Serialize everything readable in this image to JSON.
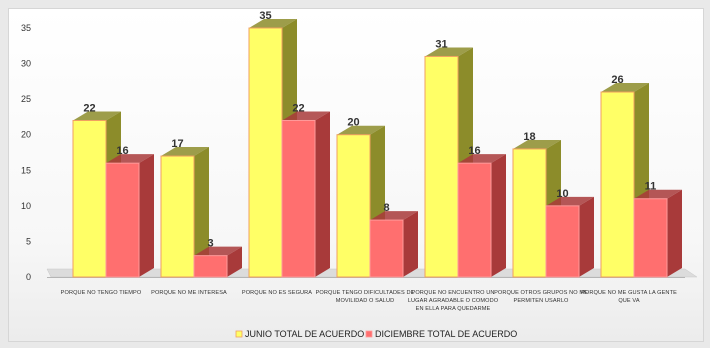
{
  "chart_data": {
    "type": "bar",
    "categories": [
      "PORQUE NO TENGO TIEMPO",
      "PORQUE NO ME INTERESA",
      "PORQUE NO ES SEGURA",
      "PORQUE TENGO DIFICULTADES DE MOVILIDAD O SALUD",
      "PORQUE NO ENCUENTRO UN LUGAR AGRADABLE O COMODO EN ELLA PARA QUEDARME",
      "PORQUE OTROS GRUPOS NO ME PERMITEN USARLO",
      "PORQUE NO ME GUSTA LA GENTE QUE VA"
    ],
    "category_lines": [
      [
        "PORQUE NO TENGO TIEMPO"
      ],
      [
        "PORQUE NO ME INTERESA"
      ],
      [
        "PORQUE NO ES SEGURA"
      ],
      [
        "PORQUE TENGO DIFICULTADES DE",
        "MOVILIDAD O SALUD"
      ],
      [
        "PORQUE NO ENCUENTRO UN",
        "LUGAR AGRADABLE O COMODO",
        "EN ELLA PARA QUEDARME"
      ],
      [
        "PORQUE OTROS GRUPOS NO ME",
        "PERMITEN USARLO"
      ],
      [
        "PORQUE NO ME GUSTA LA GENTE",
        "QUE VA"
      ]
    ],
    "series": [
      {
        "name": "JUNIO TOTAL DE ACUERDO",
        "values": [
          22,
          17,
          35,
          20,
          31,
          18,
          26
        ],
        "color": "#ffff66",
        "side_color": "#8c8c2a",
        "edge_color": "#f0a060"
      },
      {
        "name": "DICIEMBRE TOTAL DE ACUERDO",
        "values": [
          16,
          3,
          22,
          8,
          16,
          10,
          11
        ],
        "color": "#ff6f6f",
        "side_color": "#a83a3a",
        "edge_color": "#ff9a9a"
      }
    ],
    "yticks": [
      "0",
      "5",
      "10",
      "15",
      "20",
      "25",
      "30",
      "35"
    ],
    "ylim": [
      0,
      35
    ],
    "legend_position": "bottom",
    "grid": false
  }
}
